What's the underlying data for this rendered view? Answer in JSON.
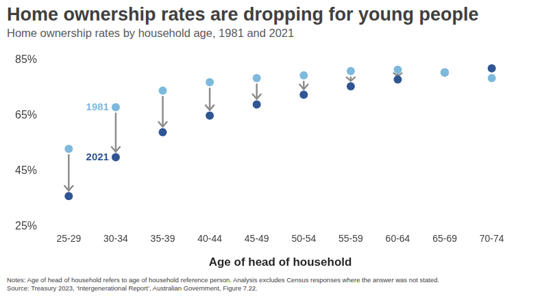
{
  "chart_data": {
    "type": "scatter",
    "title": "Home ownership rates are dropping for young people",
    "subtitle": "Home ownership rates by household age, 1981 and 2021",
    "x_label": "Age of head of household",
    "categories": [
      "25-29",
      "30-34",
      "35-39",
      "40-44",
      "45-49",
      "50-54",
      "55-59",
      "60-64",
      "65-69",
      "70-74"
    ],
    "series": [
      {
        "name": "1981",
        "color": "#7db9dd",
        "marker": "circle",
        "values": [
          53,
          68,
          74,
          77,
          78.5,
          79.5,
          81,
          81.5,
          80.5,
          78.5
        ]
      },
      {
        "name": "2021",
        "color": "#2f5592",
        "marker": "circle",
        "values": [
          36,
          50,
          59,
          65,
          69,
          72.5,
          75.5,
          78,
          80.5,
          82
        ]
      }
    ],
    "ylim": [
      25,
      85
    ],
    "yticks": [
      {
        "value": 25,
        "label": "25%"
      },
      {
        "value": 45,
        "label": "45%"
      },
      {
        "value": 65,
        "label": "65%"
      },
      {
        "value": 85,
        "label": "85%"
      }
    ],
    "grid": false,
    "notes": "Notes: Age of head of household refers to age of household reference person. Analysis excludes Census responses where the answer was not stated.",
    "source": "Source: Treasury 2023, ‘Intergenerational Report’, Australian Government, Figure 7.22."
  }
}
